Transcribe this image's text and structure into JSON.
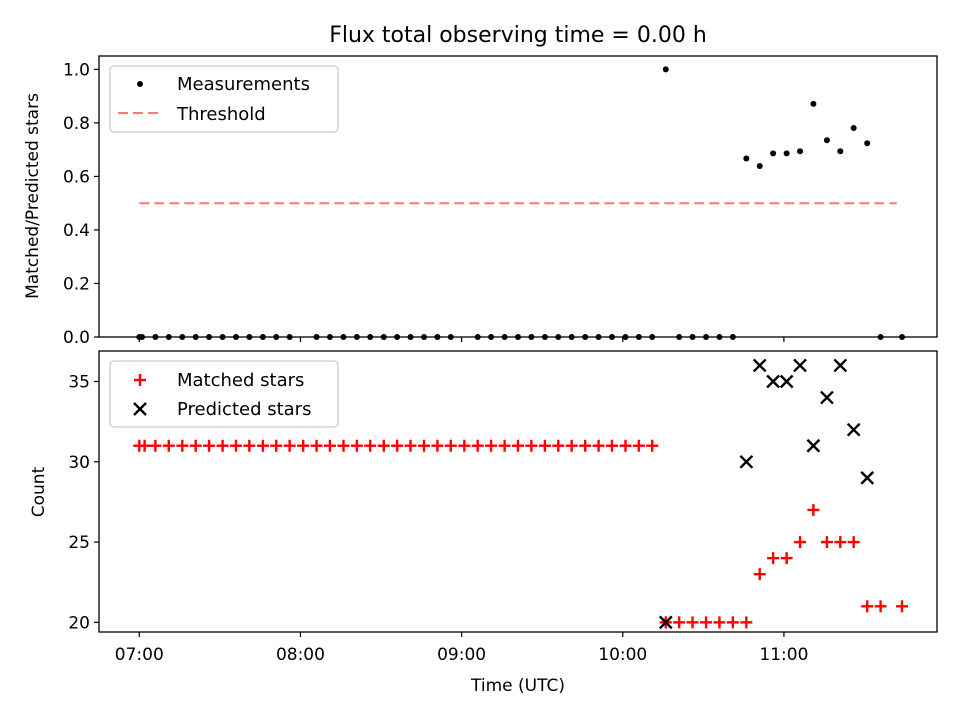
{
  "chart_data": [
    {
      "type": "scatter",
      "title": "Flux total observing time = 0.00 h",
      "xlabel": "",
      "ylabel": "Matched/Predicted stars",
      "xlim": [
        6.75,
        11.95
      ],
      "ylim": [
        0,
        1.05
      ],
      "yticks": [
        0.0,
        0.2,
        0.4,
        0.6,
        0.8,
        1.0
      ],
      "ytick_labels": [
        "0.0",
        "0.2",
        "0.4",
        "0.6",
        "0.8",
        "1.0"
      ],
      "xticks": [
        7,
        8,
        9,
        10,
        11
      ],
      "grid": false,
      "legend": {
        "position": "top-left",
        "entries": [
          "Measurements",
          "Threshold"
        ]
      },
      "series": [
        {
          "name": "Measurements",
          "marker": "dot",
          "color": "#000000",
          "x": [
            7.0,
            7.017,
            7.1,
            7.183,
            7.267,
            7.35,
            7.433,
            7.517,
            7.6,
            7.683,
            7.767,
            7.85,
            7.933,
            8.1,
            8.183,
            8.267,
            8.35,
            8.433,
            8.517,
            8.6,
            8.683,
            8.767,
            8.85,
            8.933,
            9.1,
            9.183,
            9.267,
            9.35,
            9.433,
            9.517,
            9.6,
            9.683,
            9.767,
            9.85,
            9.933,
            10.017,
            10.1,
            10.183,
            10.267,
            10.35,
            10.433,
            10.517,
            10.6,
            10.683,
            10.767,
            10.85,
            10.933,
            11.017,
            11.1,
            11.183,
            11.267,
            11.35,
            11.433,
            11.517,
            11.6,
            11.733
          ],
          "y": [
            0,
            0,
            0,
            0,
            0,
            0,
            0,
            0,
            0,
            0,
            0,
            0,
            0,
            0,
            0,
            0,
            0,
            0,
            0,
            0,
            0,
            0,
            0,
            0,
            0,
            0,
            0,
            0,
            0,
            0,
            0,
            0,
            0,
            0,
            0,
            0,
            0,
            0,
            1.0,
            0,
            0,
            0,
            0,
            0,
            0.667,
            0.639,
            0.686,
            0.686,
            0.694,
            0.871,
            0.735,
            0.694,
            0.781,
            0.724,
            0,
            0
          ]
        },
        {
          "name": "Threshold",
          "style": "dashed",
          "color": "#ff7777",
          "x": [
            7.0,
            11.7
          ],
          "y": [
            0.5,
            0.5
          ]
        }
      ]
    },
    {
      "type": "scatter",
      "title": "",
      "xlabel": "Time (UTC)",
      "ylabel": "Count",
      "xlim": [
        6.75,
        11.95
      ],
      "ylim": [
        19.4,
        36.9
      ],
      "yticks": [
        20,
        25,
        30,
        35
      ],
      "ytick_labels": [
        "20",
        "25",
        "30",
        "35"
      ],
      "xticks": [
        7,
        8,
        9,
        10,
        11
      ],
      "xtick_labels": [
        "07:00",
        "08:00",
        "09:00",
        "10:00",
        "11:00"
      ],
      "grid": false,
      "legend": {
        "position": "top-left",
        "entries": [
          "Matched stars",
          "Predicted stars"
        ]
      },
      "series": [
        {
          "name": "Matched stars",
          "marker": "plus",
          "color": "#ff0000",
          "x": [
            7.0,
            7.033,
            7.1,
            7.183,
            7.267,
            7.35,
            7.433,
            7.517,
            7.6,
            7.683,
            7.767,
            7.85,
            7.933,
            8.017,
            8.1,
            8.183,
            8.267,
            8.35,
            8.433,
            8.517,
            8.6,
            8.683,
            8.767,
            8.85,
            8.933,
            9.017,
            9.1,
            9.183,
            9.267,
            9.35,
            9.433,
            9.517,
            9.6,
            9.683,
            9.767,
            9.85,
            9.933,
            10.017,
            10.1,
            10.183,
            10.267,
            10.35,
            10.433,
            10.517,
            10.6,
            10.683,
            10.767,
            10.85,
            10.933,
            11.017,
            11.1,
            11.183,
            11.267,
            11.35,
            11.433,
            11.517,
            11.6,
            11.733
          ],
          "y": [
            31,
            31,
            31,
            31,
            31,
            31,
            31,
            31,
            31,
            31,
            31,
            31,
            31,
            31,
            31,
            31,
            31,
            31,
            31,
            31,
            31,
            31,
            31,
            31,
            31,
            31,
            31,
            31,
            31,
            31,
            31,
            31,
            31,
            31,
            31,
            31,
            31,
            31,
            31,
            31,
            20,
            20,
            20,
            20,
            20,
            20,
            20,
            23,
            24,
            24,
            25,
            27,
            25,
            25,
            25,
            21,
            21,
            21
          ]
        },
        {
          "name": "Predicted stars",
          "marker": "x",
          "color": "#000000",
          "x": [
            10.267,
            10.767,
            10.85,
            10.933,
            11.017,
            11.1,
            11.183,
            11.267,
            11.35,
            11.433,
            11.517
          ],
          "y": [
            20,
            30,
            36,
            35,
            35,
            36,
            31,
            34,
            36,
            32,
            29
          ]
        }
      ]
    }
  ]
}
